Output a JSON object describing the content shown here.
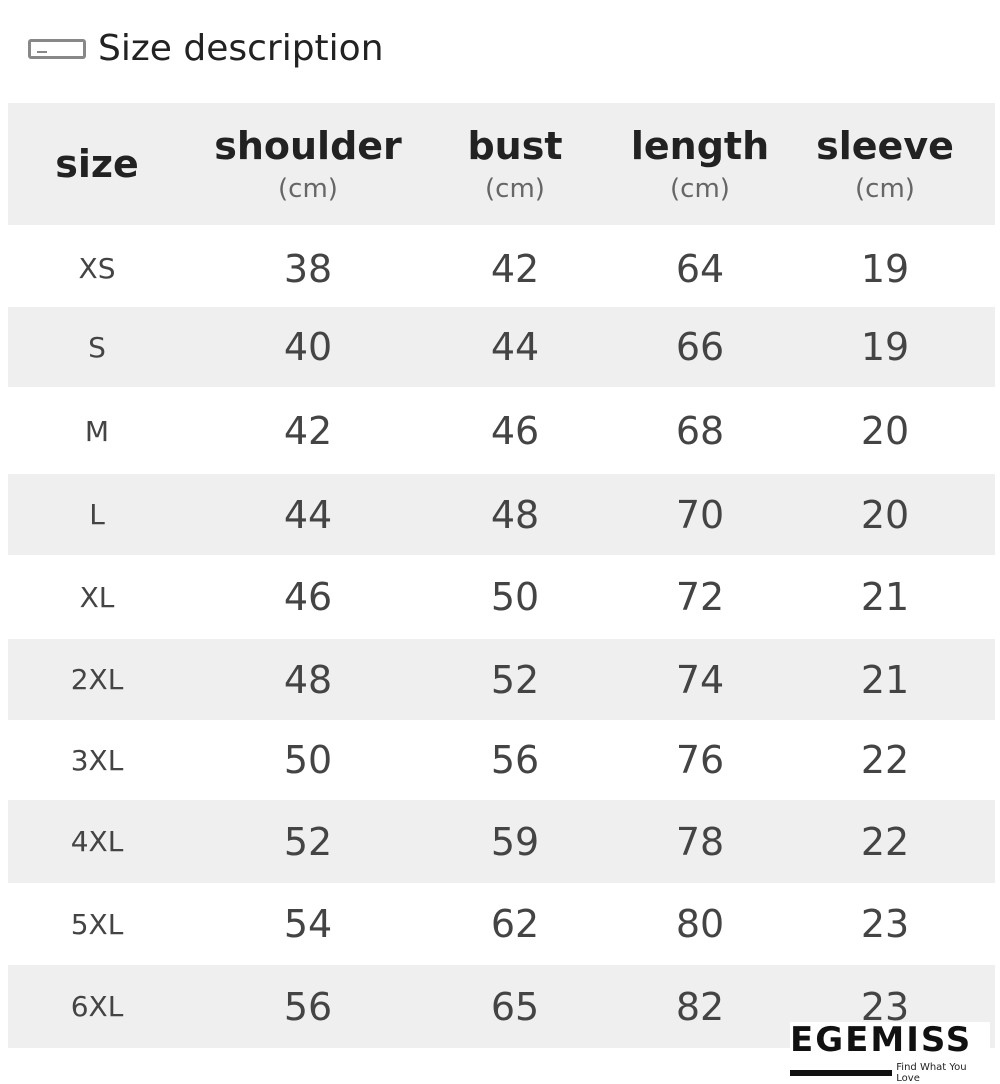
{
  "title": "Size description",
  "title_icon": "tag-icon",
  "headers": [
    {
      "label": "size",
      "unit": ""
    },
    {
      "label": "shoulder",
      "unit": "(cm)"
    },
    {
      "label": "bust",
      "unit": "(cm)"
    },
    {
      "label": "length",
      "unit": "(cm)"
    },
    {
      "label": "sleeve",
      "unit": "(cm)"
    }
  ],
  "rows": [
    [
      "XS",
      "38",
      "42",
      "64",
      "19"
    ],
    [
      "S",
      "40",
      "44",
      "66",
      "19"
    ],
    [
      "M",
      "42",
      "46",
      "68",
      "20"
    ],
    [
      "L",
      "44",
      "48",
      "70",
      "20"
    ],
    [
      "XL",
      "46",
      "50",
      "72",
      "21"
    ],
    [
      "2XL",
      "48",
      "52",
      "74",
      "21"
    ],
    [
      "3XL",
      "50",
      "56",
      "76",
      "22"
    ],
    [
      "4XL",
      "52",
      "59",
      "78",
      "22"
    ],
    [
      "5XL",
      "54",
      "62",
      "80",
      "23"
    ],
    [
      "6XL",
      "56",
      "65",
      "82",
      "23"
    ]
  ],
  "logo": {
    "brand": "EGEMISS",
    "tagline": "Find What You Love"
  }
}
